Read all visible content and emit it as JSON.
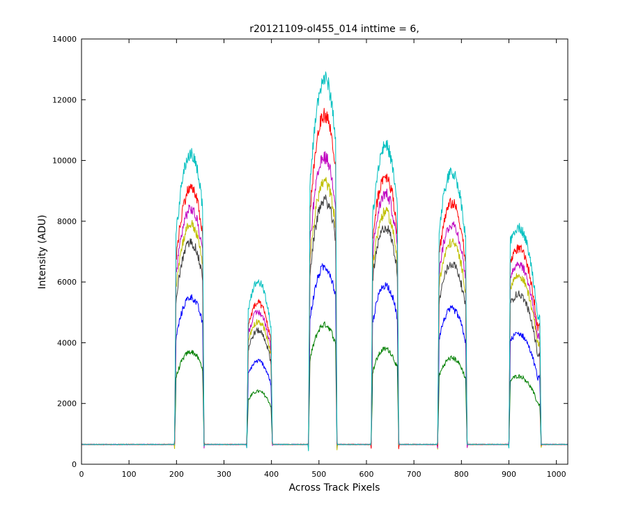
{
  "chart_data": {
    "type": "line",
    "title": "r20121109-ol455_014 inttime = 6,",
    "xlabel": "Across Track Pixels",
    "ylabel": "Intensity (ADU)",
    "xlim": [
      0,
      1024
    ],
    "ylim": [
      0,
      14000
    ],
    "xticks": [
      0,
      100,
      200,
      300,
      400,
      500,
      600,
      700,
      800,
      900,
      1000
    ],
    "yticks": [
      0,
      2000,
      4000,
      6000,
      8000,
      10000,
      12000,
      14000
    ],
    "grid": false,
    "baseline": 650,
    "peaks": [
      {
        "x_start": 196,
        "x_end": 258,
        "x_center": 230
      },
      {
        "x_start": 348,
        "x_end": 402,
        "x_center": 372
      },
      {
        "x_start": 478,
        "x_end": 538,
        "x_center": 512
      },
      {
        "x_start": 610,
        "x_end": 668,
        "x_center": 640
      },
      {
        "x_start": 750,
        "x_end": 812,
        "x_center": 780
      },
      {
        "x_start": 900,
        "x_end": 968,
        "x_center": 920
      }
    ],
    "series": [
      {
        "color": "#007f00",
        "peak_values": [
          3700,
          2400,
          4600,
          3800,
          3500,
          2900
        ]
      },
      {
        "color": "#0000ff",
        "peak_values": [
          5500,
          3400,
          6500,
          5900,
          5100,
          4300
        ]
      },
      {
        "color": "#3f3f3f",
        "peak_values": [
          7300,
          4400,
          8700,
          7800,
          6600,
          5600
        ]
      },
      {
        "color": "#bfbf00",
        "peak_values": [
          7900,
          4700,
          9300,
          8300,
          7300,
          6200
        ]
      },
      {
        "color": "#bf00bf",
        "peak_values": [
          8400,
          5000,
          10100,
          8900,
          7900,
          6600
        ]
      },
      {
        "color": "#ff0000",
        "peak_values": [
          9100,
          5300,
          11500,
          9500,
          8600,
          7100
        ]
      },
      {
        "color": "#00bfbf",
        "peak_values": [
          10200,
          6000,
          12700,
          10500,
          9600,
          7800
        ]
      }
    ]
  }
}
